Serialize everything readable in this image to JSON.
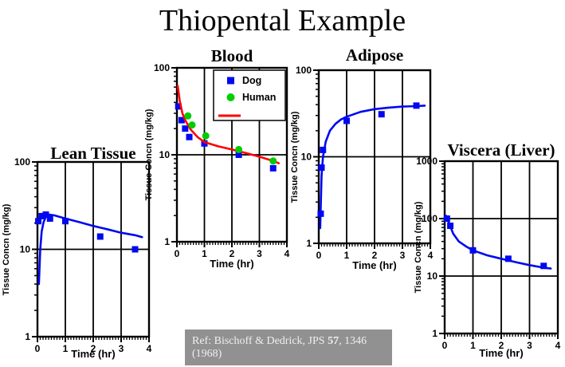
{
  "page": {
    "title": "Thiopental Example"
  },
  "colors": {
    "dog": "#0008F0",
    "human": "#00CC00",
    "model_blood": "#FF0000",
    "model_other": "#0008F0",
    "axis": "#000000",
    "ref_bg": "#919191",
    "ref_text": "#efefef"
  },
  "reference": {
    "prefix": "Ref: Bischoff & Dedrick, JPS ",
    "volume": "57",
    "suffix": ", 1346 (1968)"
  },
  "chart_data": [
    {
      "id": "lean-tissue",
      "type": "scatter",
      "title": "Lean Tissue",
      "xlabel": "Time (hr)",
      "ylabel": "Tissue Concn (mg/kg)",
      "xlim": [
        0,
        4
      ],
      "ylim": [
        1,
        100
      ],
      "ylog": true,
      "xticks": [
        0,
        1,
        2,
        3,
        4
      ],
      "yticks": [
        1,
        10,
        100
      ],
      "grid_x": [
        1,
        2,
        3
      ],
      "grid_y": [
        10
      ],
      "series": [
        {
          "name": "model",
          "type": "line",
          "color_key": "model_other",
          "points": [
            [
              0.05,
              4
            ],
            [
              0.1,
              10
            ],
            [
              0.15,
              16
            ],
            [
              0.22,
              20.5
            ],
            [
              0.3,
              23.5
            ],
            [
              0.4,
              25
            ],
            [
              0.6,
              24.5
            ],
            [
              0.8,
              23.5
            ],
            [
              1.0,
              22.5
            ],
            [
              1.5,
              20.5
            ],
            [
              2.0,
              18.5
            ],
            [
              2.5,
              17
            ],
            [
              3.0,
              15.5
            ],
            [
              3.5,
              14.5
            ],
            [
              3.75,
              13.8
            ]
          ]
        },
        {
          "name": "Dog",
          "type": "scatter",
          "marker": "square",
          "color_key": "dog",
          "points": [
            [
              0.03,
              21
            ],
            [
              0.15,
              24
            ],
            [
              0.3,
              25
            ],
            [
              0.45,
              22.5
            ],
            [
              1.0,
              21
            ],
            [
              2.25,
              14
            ],
            [
              3.5,
              10
            ]
          ]
        }
      ]
    },
    {
      "id": "blood",
      "type": "scatter",
      "title": "Blood",
      "xlabel": "Time (hr)",
      "ylabel": "Tissue Concn (mg/kg)",
      "xlim": [
        0,
        4
      ],
      "ylim": [
        1,
        100
      ],
      "ylog": true,
      "xticks": [
        0,
        1,
        2,
        3,
        4
      ],
      "yticks": [
        1,
        10,
        100
      ],
      "grid_x": [
        1,
        2,
        3
      ],
      "grid_y": [
        10
      ],
      "legend": {
        "items": [
          {
            "label": "Dog",
            "marker": "square",
            "color_key": "dog"
          },
          {
            "label": "Human",
            "marker": "circle",
            "color_key": "human"
          },
          {
            "label": "",
            "marker": "line",
            "color_key": "model_blood"
          }
        ]
      },
      "series": [
        {
          "name": "Dog",
          "type": "scatter",
          "marker": "square",
          "color_key": "dog",
          "points": [
            [
              0.05,
              36
            ],
            [
              0.17,
              25
            ],
            [
              0.3,
              20
            ],
            [
              0.45,
              16
            ],
            [
              1.0,
              13.5
            ],
            [
              2.25,
              10
            ],
            [
              3.5,
              7
            ]
          ]
        },
        {
          "name": "model",
          "type": "line",
          "color_key": "model_blood",
          "points": [
            [
              0.03,
              62
            ],
            [
              0.1,
              42
            ],
            [
              0.2,
              30
            ],
            [
              0.3,
              25
            ],
            [
              0.5,
              19.5
            ],
            [
              0.75,
              16
            ],
            [
              1.0,
              14
            ],
            [
              1.5,
              12.5
            ],
            [
              2.0,
              11.5
            ],
            [
              2.5,
              10.5
            ],
            [
              3.0,
              9.5
            ],
            [
              3.5,
              8.5
            ],
            [
              3.7,
              8
            ]
          ]
        },
        {
          "name": "Human",
          "type": "scatter",
          "marker": "circle",
          "color_key": "human",
          "points": [
            [
              0.4,
              28
            ],
            [
              0.55,
              22
            ],
            [
              1.05,
              16.5
            ],
            [
              2.25,
              11.5
            ],
            [
              3.5,
              8.5
            ]
          ]
        }
      ]
    },
    {
      "id": "adipose",
      "type": "scatter",
      "title": "Adipose",
      "xlabel": "Time (hr)",
      "ylabel": "Tissue Concn (mg/kg)",
      "xlim": [
        0,
        4
      ],
      "ylim": [
        1,
        100
      ],
      "ylog": true,
      "xticks": [
        0,
        1,
        2,
        3,
        4
      ],
      "yticks": [
        1,
        10,
        100
      ],
      "grid_x": [
        1,
        2,
        3
      ],
      "grid_y": [
        10
      ],
      "series": [
        {
          "name": "model",
          "type": "line",
          "color_key": "model_other",
          "points": [
            [
              0.05,
              1.5
            ],
            [
              0.1,
              6
            ],
            [
              0.15,
              10
            ],
            [
              0.25,
              15
            ],
            [
              0.4,
              20
            ],
            [
              0.6,
              24
            ],
            [
              0.8,
              27
            ],
            [
              1.0,
              29
            ],
            [
              1.5,
              33
            ],
            [
              2.0,
              35.5
            ],
            [
              2.5,
              37
            ],
            [
              3.0,
              38
            ],
            [
              3.5,
              38.5
            ],
            [
              3.8,
              39
            ]
          ]
        },
        {
          "name": "Dog",
          "type": "scatter",
          "marker": "square",
          "color_key": "dog",
          "points": [
            [
              0.07,
              2.2
            ],
            [
              0.1,
              7.5
            ],
            [
              0.15,
              12
            ],
            [
              1.0,
              26
            ],
            [
              2.25,
              31
            ],
            [
              3.5,
              39
            ]
          ]
        }
      ]
    },
    {
      "id": "viscera-liver",
      "type": "scatter",
      "title": "Viscera (Liver)",
      "xlabel": "Time (hr)",
      "ylabel": "Tissue Concn (mg/kg)",
      "xlim": [
        0,
        4
      ],
      "ylim": [
        1,
        1000
      ],
      "ylog": true,
      "xticks": [
        0,
        1,
        2,
        3,
        4
      ],
      "yticks": [
        1,
        10,
        100,
        1000
      ],
      "grid_x": [
        1,
        2,
        3
      ],
      "grid_y": [
        10,
        100
      ],
      "series": [
        {
          "name": "model",
          "type": "line",
          "color_key": "model_other",
          "points": [
            [
              0.05,
              112
            ],
            [
              0.15,
              85
            ],
            [
              0.3,
              55
            ],
            [
              0.5,
              40
            ],
            [
              0.75,
              33
            ],
            [
              1.0,
              28
            ],
            [
              1.5,
              23
            ],
            [
              2.0,
              20
            ],
            [
              2.5,
              17.5
            ],
            [
              3.0,
              15.5
            ],
            [
              3.5,
              14
            ],
            [
              3.75,
              13.5
            ]
          ]
        },
        {
          "name": "Dog",
          "type": "scatter",
          "marker": "square",
          "color_key": "dog",
          "points": [
            [
              0.08,
              100
            ],
            [
              0.2,
              75
            ],
            [
              1.0,
              28
            ],
            [
              2.25,
              20
            ],
            [
              3.5,
              15
            ]
          ]
        }
      ]
    }
  ]
}
